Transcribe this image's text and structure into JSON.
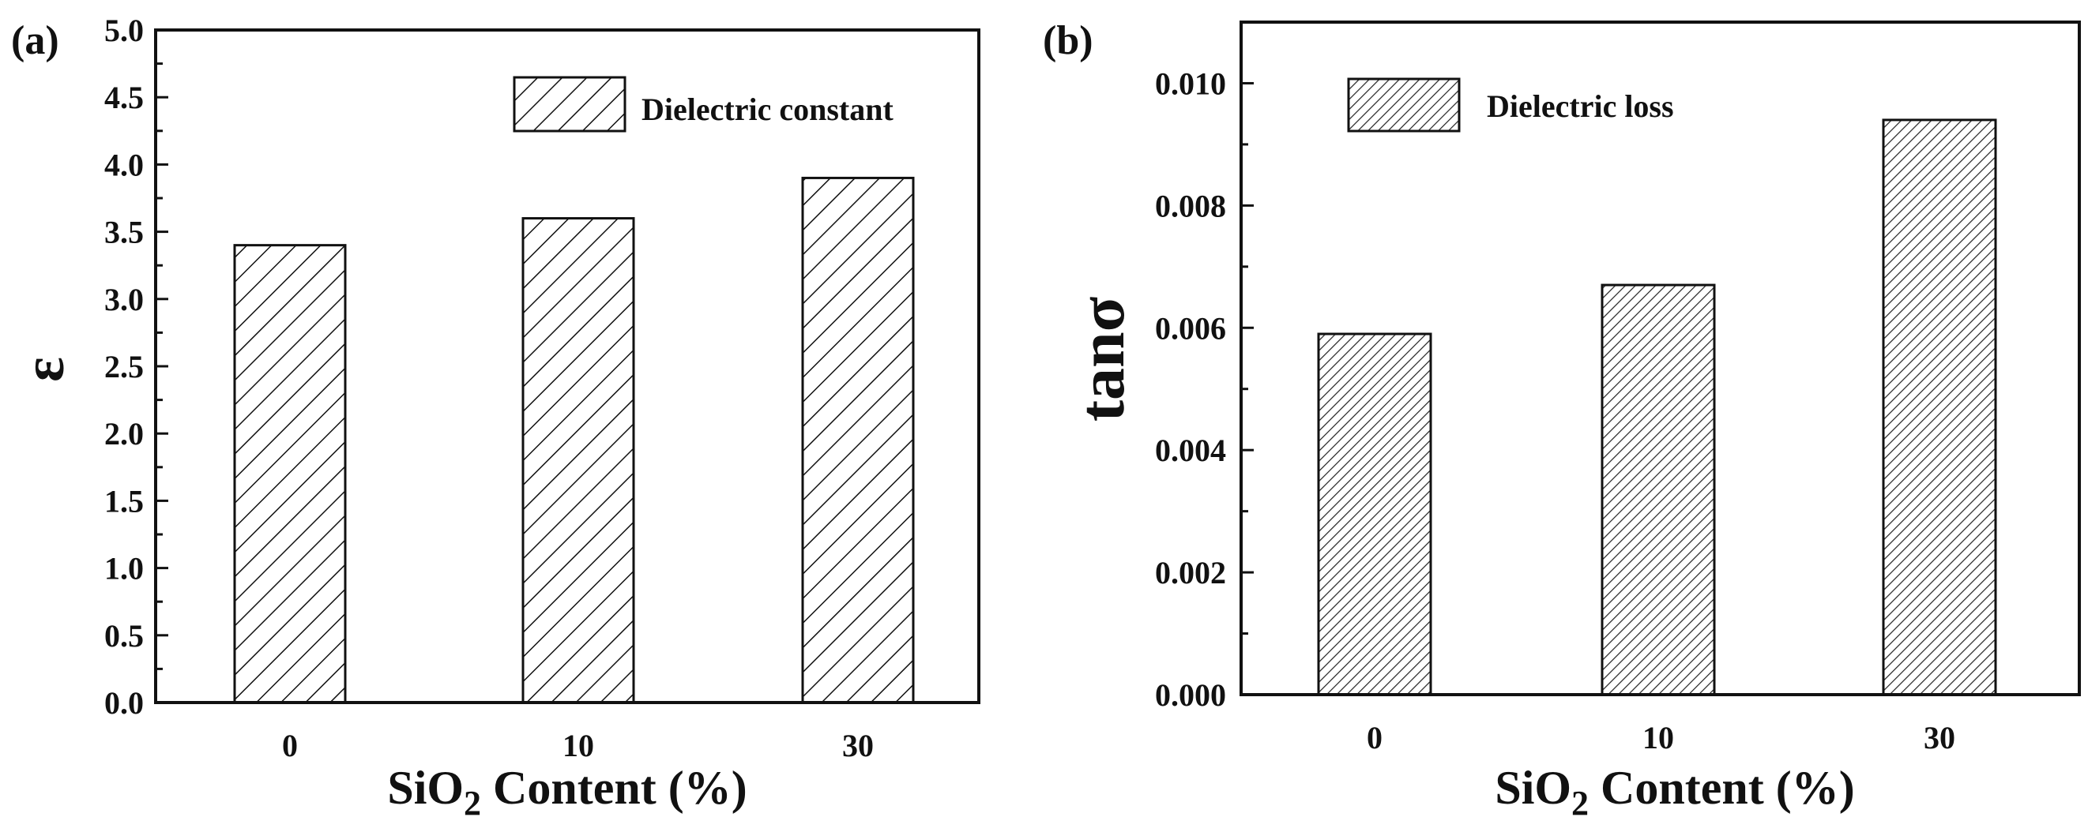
{
  "chart_data": [
    {
      "type": "bar",
      "panel_label": "(a)",
      "categories": [
        "0",
        "10",
        "30"
      ],
      "values": [
        3.4,
        3.6,
        3.9
      ],
      "ylim": [
        0,
        5.0
      ],
      "yticks": [
        "0.0",
        "0.5",
        "1.0",
        "1.5",
        "2.0",
        "2.5",
        "3.0",
        "3.5",
        "4.0",
        "4.5",
        "5.0"
      ],
      "ylabel": "ε",
      "xlabel_prefix": "SiO",
      "xlabel_sub": "2",
      "xlabel_suffix": " Content (%)",
      "legend": "Dielectric constant",
      "legend_position": "top-right",
      "pattern": "wide-hatch"
    },
    {
      "type": "bar",
      "panel_label": "(b)",
      "categories": [
        "0",
        "10",
        "30"
      ],
      "values": [
        0.0059,
        0.0067,
        0.0094
      ],
      "ylim": [
        0,
        0.011
      ],
      "yticks": [
        "0.000",
        "0.002",
        "0.004",
        "0.006",
        "0.008",
        "0.010"
      ],
      "ylabel": "tanσ",
      "xlabel_prefix": "SiO",
      "xlabel_sub": "2",
      "xlabel_suffix": " Content (%)",
      "legend": "Dielectric loss",
      "legend_position": "top-left",
      "pattern": "dense-hatch"
    }
  ],
  "colors": {
    "ink": "#111111",
    "bar_fill": "#ffffff"
  }
}
